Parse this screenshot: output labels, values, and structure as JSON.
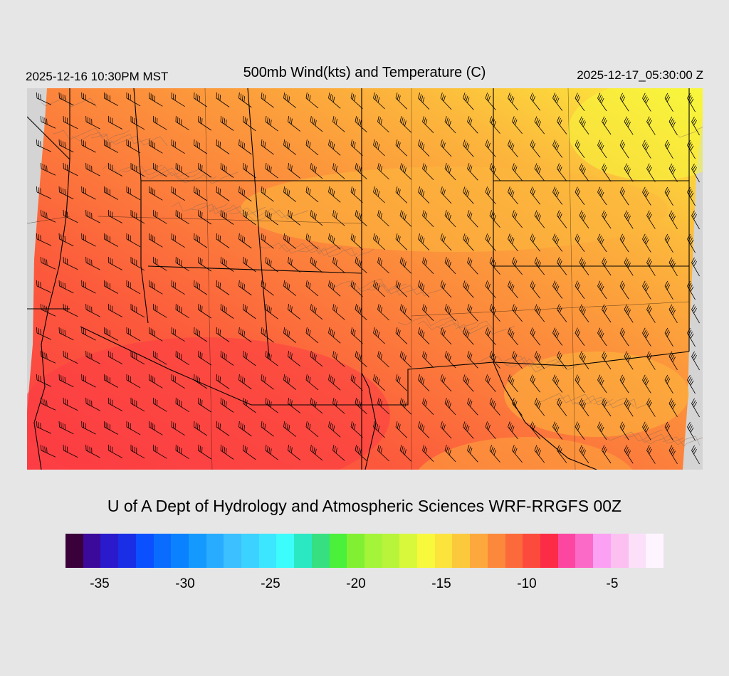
{
  "header": {
    "valid_local": "2025-12-16 10:30PM MST",
    "title": "500mb Wind(kts) and Temperature (C)",
    "valid_utc": "2025-12-17_05:30:00 Z"
  },
  "footer": {
    "credit": "U of A Dept of Hydrology and Atmospheric Sciences WRF-RRGFS 00Z"
  },
  "colorbar": {
    "colors": [
      "#3a003a",
      "#3c0a9a",
      "#2a1acc",
      "#1a2ee6",
      "#0a50ff",
      "#0a6cff",
      "#0a82ff",
      "#149aff",
      "#28acff",
      "#3cc0ff",
      "#3cd2ff",
      "#3ce6ff",
      "#3cfcfc",
      "#2ae8c2",
      "#36e080",
      "#4af03a",
      "#82f032",
      "#a4f43a",
      "#b8f43a",
      "#d8f83c",
      "#f8f83c",
      "#fce43c",
      "#fcc83c",
      "#fca83c",
      "#fc883c",
      "#fc6a3c",
      "#fc4a3c",
      "#fc2c46",
      "#fc46a0",
      "#fc6ac8",
      "#fca0f4",
      "#fcc0f0",
      "#fce0fa",
      "#fef4ff"
    ],
    "labels": [
      "-35",
      "-30",
      "-25",
      "-20",
      "-15",
      "-10",
      "-5"
    ],
    "label_values": [
      -35,
      -30,
      -25,
      -20,
      -15,
      -10,
      -5
    ],
    "min": -37,
    "max": -2
  },
  "map": {
    "field": "500mb temperature (C) with wind barbs",
    "field_colors": [
      "#fc4a3c",
      "#fc6a3c",
      "#fc883c",
      "#fca83c",
      "#fcc83c",
      "#fce43c",
      "#f8f83c"
    ],
    "missing_color": "#d4d4d4",
    "barb_color": "#000000",
    "contour_color": "#8a6a5a",
    "border_color": "#000000"
  }
}
